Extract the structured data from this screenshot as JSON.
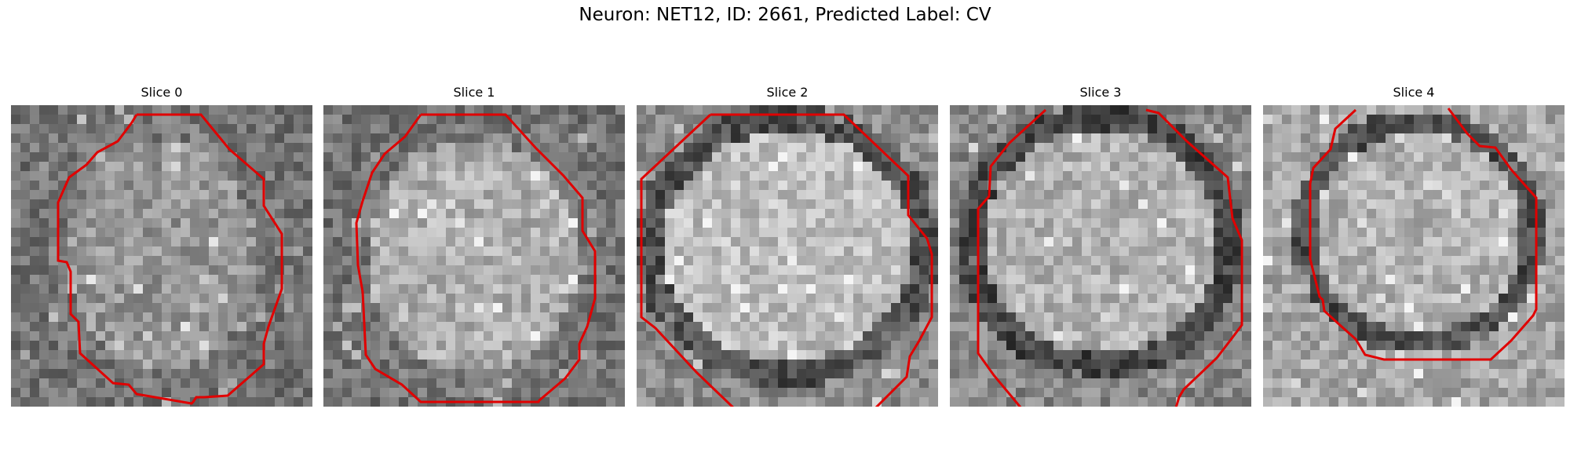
{
  "figure": {
    "title": "Neuron: NET12, ID: 2661, Predicted Label: CV"
  },
  "colors": {
    "contour": "#e00000"
  },
  "panels": [
    {
      "title": "Slice 0"
    },
    {
      "title": "Slice 1"
    },
    {
      "title": "Slice 2"
    },
    {
      "title": "Slice 3"
    },
    {
      "title": "Slice 4"
    }
  ]
}
